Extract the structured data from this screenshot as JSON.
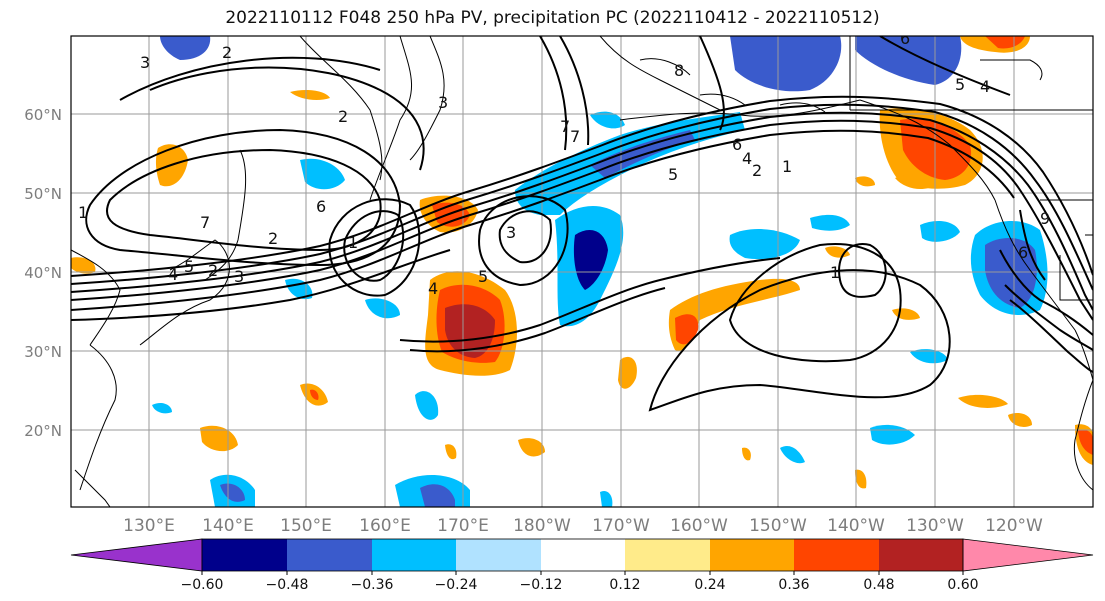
{
  "title": "2022110112 F048 250 hPa PV, precipitation PC (2022110412 - 2022110512)",
  "lat_labels": [
    "60°N",
    "50°N",
    "40°N",
    "30°N",
    "20°N"
  ],
  "lon_labels": [
    "130°E",
    "140°E",
    "150°E",
    "160°E",
    "170°E",
    "180°W",
    "170°W",
    "160°W",
    "150°W",
    "140°W",
    "130°W",
    "120°W"
  ],
  "colorbar": {
    "colors": [
      "#9932CC",
      "#00008B",
      "#3A5BCC",
      "#00BFFF",
      "#B0E2FF",
      "#FFFFFF",
      "#FFEB8A",
      "#FFA500",
      "#FF4500",
      "#B22222",
      "#FF88AA"
    ],
    "tick_labels": [
      "−0.60",
      "−0.48",
      "−0.36",
      "−0.24",
      "−0.12",
      "0.12",
      "0.24",
      "0.36",
      "0.48",
      "0.60"
    ]
  },
  "contour_labels": [
    "2",
    "3",
    "2",
    "3",
    "7",
    "2",
    "6",
    "8",
    "7",
    "6",
    "4",
    "5",
    "2",
    "1",
    "1",
    "3",
    "2",
    "1",
    "5",
    "4",
    "7",
    "6",
    "4",
    "5",
    "3",
    "1",
    "6",
    "4",
    "5",
    "9"
  ]
}
